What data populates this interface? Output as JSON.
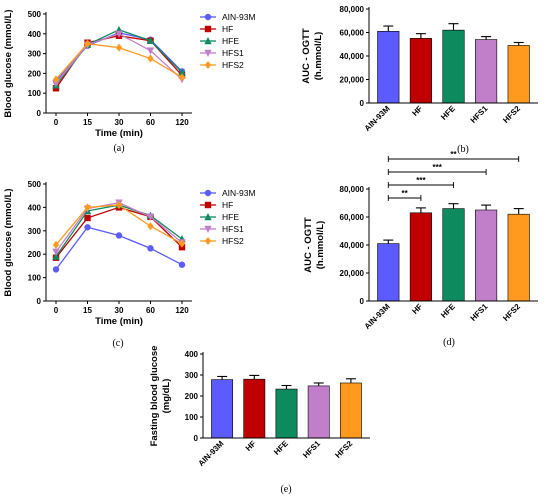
{
  "colors": {
    "AIN-93M": "#5b5bff",
    "HF": "#c00000",
    "HFE": "#0e8a5f",
    "HFS1": "#c27fc9",
    "HFS2": "#ff9a1f"
  },
  "chart_data": [
    {
      "id": "a",
      "panel_label": "(a)",
      "type": "line",
      "title": "",
      "xlabel": "Time (min)",
      "ylabel": "Blood glucose (mmol/L)",
      "x": [
        0,
        15,
        30,
        60,
        120
      ],
      "xticks": [
        "0",
        "15",
        "30",
        "60",
        "120"
      ],
      "ylim": [
        0,
        500
      ],
      "yticks": [
        "0",
        "100",
        "200",
        "300",
        "400",
        "500"
      ],
      "ytick_values": [
        0,
        100,
        200,
        300,
        400,
        500
      ],
      "legend_position": "right",
      "series": [
        {
          "name": "AIN-93M",
          "marker": "circle",
          "values": [
            160,
            340,
            405,
            370,
            210
          ]
        },
        {
          "name": "HF",
          "marker": "square",
          "values": [
            125,
            355,
            390,
            365,
            190
          ]
        },
        {
          "name": "HFE",
          "marker": "triangle-up",
          "values": [
            140,
            345,
            420,
            365,
            205
          ]
        },
        {
          "name": "HFS1",
          "marker": "triangle-down",
          "values": [
            150,
            345,
            400,
            315,
            170
          ]
        },
        {
          "name": "HFS2",
          "marker": "diamond",
          "values": [
            170,
            350,
            330,
            275,
            180
          ]
        }
      ]
    },
    {
      "id": "b",
      "panel_label": "(b)",
      "type": "bar",
      "title": "",
      "xlabel": "",
      "ylabel": "AUC - OGTT",
      "ylabel2": "(h.mmol/L)",
      "categories": [
        "AIN-93M",
        "HF",
        "HFE",
        "HFS1",
        "HFS2"
      ],
      "values": [
        61000,
        55000,
        62000,
        54000,
        49000
      ],
      "errors": [
        4500,
        4000,
        5500,
        2500,
        2500
      ],
      "ylim": [
        0,
        80000
      ],
      "yticks": [
        "0",
        "20,000",
        "40,000",
        "60,000",
        "80,000"
      ],
      "ytick_values": [
        0,
        20000,
        40000,
        60000,
        80000
      ]
    },
    {
      "id": "c",
      "panel_label": "(c)",
      "type": "line",
      "title": "",
      "xlabel": "Time (min)",
      "ylabel": "Blood glucose (mmol/L)",
      "x": [
        0,
        15,
        30,
        60,
        120
      ],
      "xticks": [
        "0",
        "15",
        "30",
        "60",
        "120"
      ],
      "ylim": [
        0,
        500
      ],
      "yticks": [
        "0",
        "100",
        "200",
        "300",
        "400",
        "500"
      ],
      "ytick_values": [
        0,
        100,
        200,
        300,
        400,
        500
      ],
      "legend_position": "right",
      "series": [
        {
          "name": "AIN-93M",
          "marker": "circle",
          "values": [
            135,
            315,
            280,
            225,
            155
          ]
        },
        {
          "name": "HF",
          "marker": "square",
          "values": [
            185,
            355,
            400,
            360,
            230
          ]
        },
        {
          "name": "HFE",
          "marker": "triangle-up",
          "values": [
            190,
            385,
            410,
            365,
            265
          ]
        },
        {
          "name": "HFS1",
          "marker": "triangle-down",
          "values": [
            210,
            395,
            420,
            360,
            250
          ]
        },
        {
          "name": "HFS2",
          "marker": "diamond",
          "values": [
            240,
            400,
            410,
            320,
            245
          ]
        }
      ]
    },
    {
      "id": "d",
      "panel_label": "(d)",
      "type": "bar",
      "title": "",
      "xlabel": "",
      "ylabel": "AUC - OGTT",
      "ylabel2": "(h.mmol/L)",
      "categories": [
        "AIN-93M",
        "HF",
        "HFE",
        "HFS1",
        "HFS2"
      ],
      "values": [
        41000,
        63000,
        66000,
        65000,
        62000
      ],
      "errors": [
        2500,
        3500,
        3500,
        3500,
        4000
      ],
      "ylim": [
        0,
        80000
      ],
      "yticks": [
        "0",
        "20,000",
        "40,000",
        "60,000",
        "80,000"
      ],
      "ytick_values": [
        0,
        20000,
        40000,
        60000,
        80000
      ],
      "significance": [
        {
          "from": "AIN-93M",
          "to": "HF",
          "label": "**"
        },
        {
          "from": "AIN-93M",
          "to": "HFE",
          "label": "***"
        },
        {
          "from": "AIN-93M",
          "to": "HFS1",
          "label": "***"
        },
        {
          "from": "AIN-93M",
          "to": "HFS2",
          "label": "**"
        }
      ]
    },
    {
      "id": "e",
      "panel_label": "(e)",
      "type": "bar",
      "title": "",
      "xlabel": "",
      "ylabel": "Fasting blood glucose",
      "ylabel2": "(mg/dL)",
      "categories": [
        "AIN-93M",
        "HF",
        "HFE",
        "HFS1",
        "HFS2"
      ],
      "values": [
        278,
        280,
        233,
        248,
        262
      ],
      "errors": [
        15,
        18,
        17,
        14,
        20
      ],
      "ylim": [
        0,
        400
      ],
      "yticks": [
        "0",
        "100",
        "200",
        "300",
        "400"
      ],
      "ytick_values": [
        0,
        100,
        200,
        300,
        400
      ]
    }
  ]
}
